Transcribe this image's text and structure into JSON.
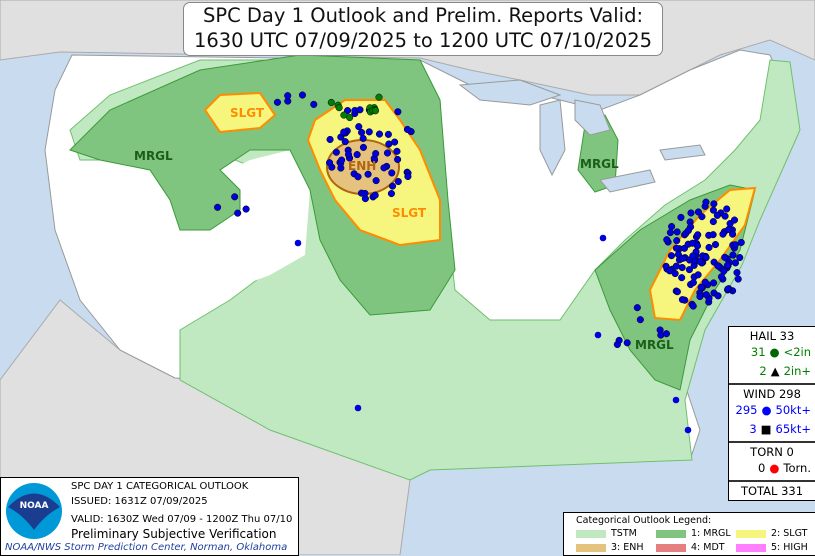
{
  "title": {
    "line1": "SPC Day 1 Outlook and Prelim. Reports Valid:",
    "line2": "1630 UTC 07/09/2025 to 1200 UTC 07/10/2025"
  },
  "map_labels": {
    "slgt_nw": "SLGT",
    "slgt_central": "SLGT",
    "enh": "ENH",
    "mrgl_nw": "MRGL",
    "mrgl_mi": "MRGL",
    "mrgl_se": "MRGL"
  },
  "info": {
    "logo": "NOAA",
    "line1": "SPC DAY 1 CATEGORICAL OUTLOOK",
    "line2": "ISSUED: 1631Z 07/09/2025",
    "line3": "VALID: 1630Z Wed 07/09 - 1200Z Thu 07/10",
    "line4": "Preliminary Subjective Verification",
    "credit": "NOAA/NWS Storm Prediction Center, Norman, Oklahoma"
  },
  "legend": {
    "title": "Categorical Outlook Legend:",
    "items": [
      {
        "label": "TSTM",
        "color": "#c1e9c1"
      },
      {
        "label": "1: MRGL",
        "color": "#7fc57f"
      },
      {
        "label": "2: SLGT",
        "color": "#f6f67f"
      },
      {
        "label": "3: ENH",
        "color": "#e6c27f"
      },
      {
        "label": "4: MDT",
        "color": "#e67f7f"
      },
      {
        "label": "5: HIGH",
        "color": "#ff7fff"
      }
    ]
  },
  "stats": {
    "hail": {
      "header": "HAIL 33",
      "small_count": "31",
      "small_label": "<2in",
      "large_count": "2",
      "large_label": "2in+",
      "color": "#008000"
    },
    "wind": {
      "header": "WIND 298",
      "small_count": "295",
      "small_label": "50kt+",
      "large_count": "3",
      "large_label": "65kt+",
      "color": "#0000ff"
    },
    "torn": {
      "header": "TORN 0",
      "count": "0",
      "label": "Torn.",
      "color": "#ff0000"
    },
    "total": "TOTAL 331"
  }
}
